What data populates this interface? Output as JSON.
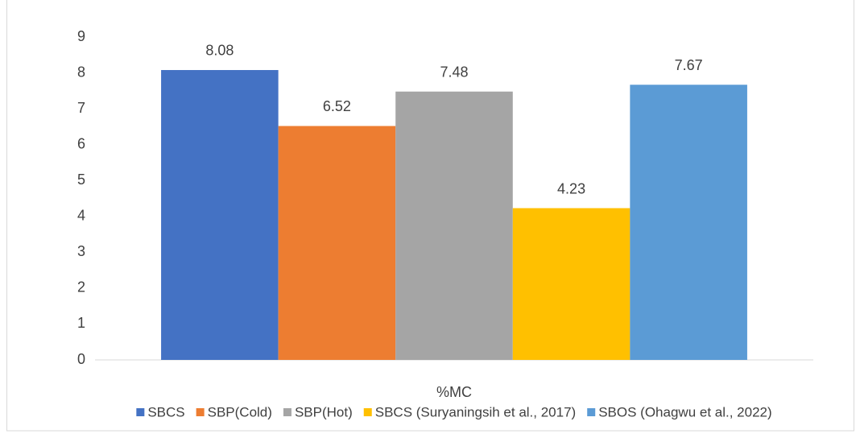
{
  "chart_data": {
    "type": "bar",
    "categories": [
      "%MC"
    ],
    "series": [
      {
        "name": "SBCS",
        "color": "#4472c4",
        "values": [
          8.08
        ]
      },
      {
        "name": "SBP(Cold)",
        "color": "#ed7d31",
        "values": [
          6.52
        ]
      },
      {
        "name": "SBP(Hot)",
        "color": "#a5a5a5",
        "values": [
          7.48
        ]
      },
      {
        "name": "SBCS (Suryaningsih et al., 2017)",
        "color": "#ffc000",
        "values": [
          4.23
        ]
      },
      {
        "name": "SBOS (Ohagwu et al., 2022)",
        "color": "#5b9bd5",
        "values": [
          7.67
        ]
      }
    ],
    "ylim": [
      0,
      9
    ],
    "yticks": [
      0,
      1,
      2,
      3,
      4,
      5,
      6,
      7,
      8,
      9
    ],
    "grid": false,
    "legend": "bottom"
  }
}
